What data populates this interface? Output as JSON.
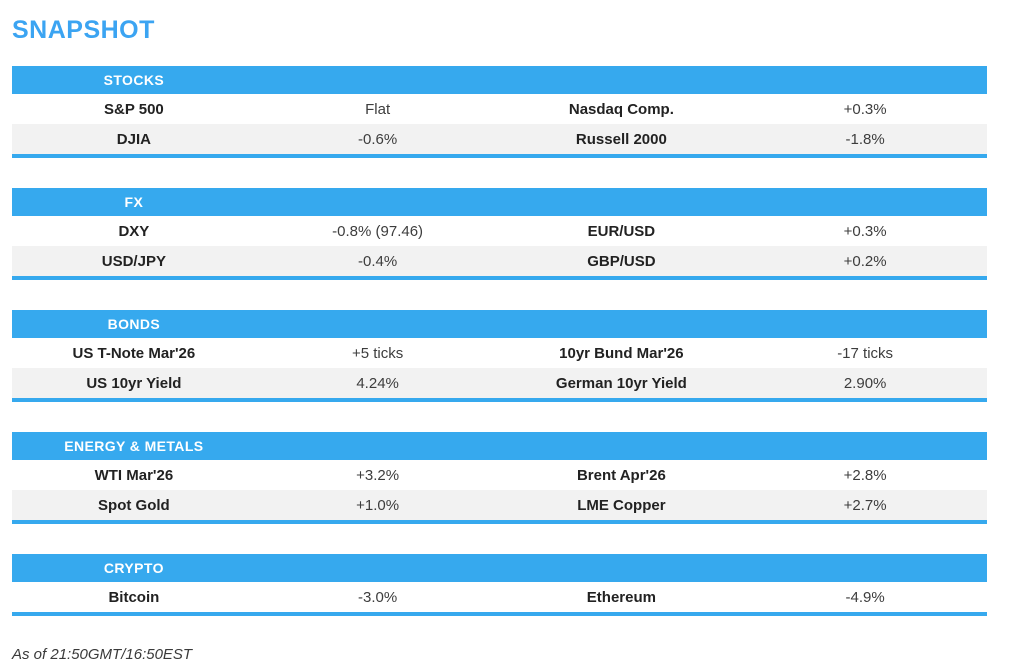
{
  "page": {
    "title": "SNAPSHOT",
    "footer": "As of 21:50GMT/16:50EST"
  },
  "colors": {
    "accent": "#36a9ee",
    "title": "#3ba4f2",
    "stripe": "#f2f2f2"
  },
  "sections": [
    {
      "header": "STOCKS",
      "rows": [
        {
          "label1": "S&P 500",
          "value1": "Flat",
          "label2": "Nasdaq Comp.",
          "value2": "+0.3%"
        },
        {
          "label1": "DJIA",
          "value1": "-0.6%",
          "label2": "Russell 2000",
          "value2": "-1.8%"
        }
      ]
    },
    {
      "header": "FX",
      "rows": [
        {
          "label1": "DXY",
          "value1": "-0.8% (97.46)",
          "label2": "EUR/USD",
          "value2": "+0.3%"
        },
        {
          "label1": "USD/JPY",
          "value1": "-0.4%",
          "label2": "GBP/USD",
          "value2": "+0.2%"
        }
      ]
    },
    {
      "header": "BONDS",
      "rows": [
        {
          "label1": "US T-Note Mar'26",
          "value1": "+5 ticks",
          "label2": "10yr Bund Mar'26",
          "value2": "-17 ticks"
        },
        {
          "label1": "US 10yr Yield",
          "value1": "4.24%",
          "label2": "German 10yr Yield",
          "value2": "2.90%"
        }
      ]
    },
    {
      "header": "ENERGY & METALS",
      "rows": [
        {
          "label1": "WTI Mar'26",
          "value1": "+3.2%",
          "label2": "Brent Apr'26",
          "value2": "+2.8%"
        },
        {
          "label1": "Spot Gold",
          "value1": "+1.0%",
          "label2": "LME Copper",
          "value2": "+2.7%"
        }
      ]
    },
    {
      "header": "CRYPTO",
      "rows": [
        {
          "label1": "Bitcoin",
          "value1": "-3.0%",
          "label2": "Ethereum",
          "value2": "-4.9%"
        }
      ]
    }
  ]
}
